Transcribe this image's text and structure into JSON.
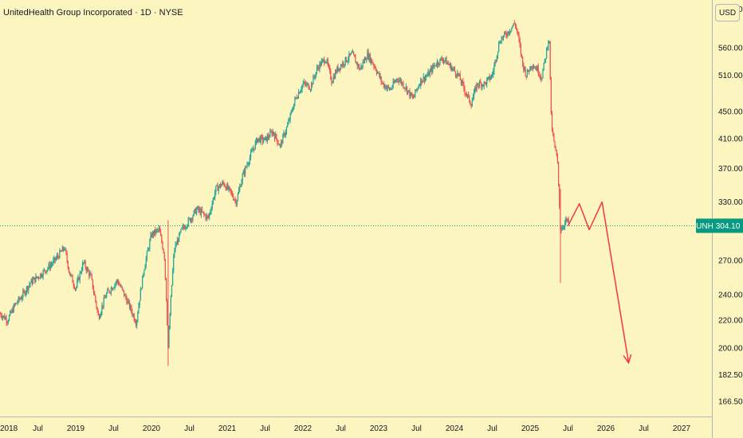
{
  "header": {
    "title": "UnitedHealth Group Incorporated · 1D · NYSE",
    "currency": "USD"
  },
  "colors": {
    "background": "#fdf5bf",
    "up": "#26a69a",
    "down": "#ef5350",
    "projection": "#f23645",
    "last_price_badge": "#089981",
    "axis_line": "#b2b5be",
    "text": "#131722"
  },
  "chart_data": {
    "type": "candlestick",
    "title": "UnitedHealth Group Incorporated · 1D · NYSE",
    "symbol": "UNH",
    "last_price": 304.1,
    "last_price_label": "304.10",
    "y_scale": "log",
    "y_range": [
      158,
      660
    ],
    "y_ticks": [
      "640.00",
      "560.00",
      "510.00",
      "450.00",
      "410.00",
      "370.00",
      "330.00",
      "270.00",
      "240.00",
      "220.00",
      "200.00",
      "182.50",
      "166.50"
    ],
    "x_range": [
      2018.0,
      2027.4
    ],
    "x_ticks": [
      {
        "label": "2018",
        "t": 2018.0
      },
      {
        "label": "Jul",
        "t": 2018.5
      },
      {
        "label": "2019",
        "t": 2019.0
      },
      {
        "label": "Jul",
        "t": 2019.5
      },
      {
        "label": "2020",
        "t": 2020.0
      },
      {
        "label": "Jul",
        "t": 2020.5
      },
      {
        "label": "2021",
        "t": 2021.0
      },
      {
        "label": "Jul",
        "t": 2021.5
      },
      {
        "label": "2022",
        "t": 2022.0
      },
      {
        "label": "Jul",
        "t": 2022.5
      },
      {
        "label": "2023",
        "t": 2023.0
      },
      {
        "label": "Jul",
        "t": 2023.5
      },
      {
        "label": "2024",
        "t": 2024.0
      },
      {
        "label": "Jul",
        "t": 2024.5
      },
      {
        "label": "2025",
        "t": 2025.0
      },
      {
        "label": "Jul",
        "t": 2025.5
      },
      {
        "label": "2026",
        "t": 2026.0
      },
      {
        "label": "Jul",
        "t": 2026.5
      },
      {
        "label": "2027",
        "t": 2027.0
      }
    ],
    "price_path": [
      {
        "t": 2018.0,
        "p": 225
      },
      {
        "t": 2018.1,
        "p": 220
      },
      {
        "t": 2018.2,
        "p": 232
      },
      {
        "t": 2018.28,
        "p": 238
      },
      {
        "t": 2018.4,
        "p": 250
      },
      {
        "t": 2018.55,
        "p": 258
      },
      {
        "t": 2018.7,
        "p": 268
      },
      {
        "t": 2018.85,
        "p": 282
      },
      {
        "t": 2018.92,
        "p": 258
      },
      {
        "t": 2019.0,
        "p": 245
      },
      {
        "t": 2019.1,
        "p": 268
      },
      {
        "t": 2019.2,
        "p": 255
      },
      {
        "t": 2019.3,
        "p": 222
      },
      {
        "t": 2019.4,
        "p": 240
      },
      {
        "t": 2019.55,
        "p": 252
      },
      {
        "t": 2019.7,
        "p": 232
      },
      {
        "t": 2019.8,
        "p": 218
      },
      {
        "t": 2019.9,
        "p": 262
      },
      {
        "t": 2020.0,
        "p": 295
      },
      {
        "t": 2020.1,
        "p": 300
      },
      {
        "t": 2020.17,
        "p": 275
      },
      {
        "t": 2020.22,
        "p": 200
      },
      {
        "t": 2020.3,
        "p": 280
      },
      {
        "t": 2020.4,
        "p": 300
      },
      {
        "t": 2020.5,
        "p": 310
      },
      {
        "t": 2020.6,
        "p": 322
      },
      {
        "t": 2020.75,
        "p": 312
      },
      {
        "t": 2020.85,
        "p": 345
      },
      {
        "t": 2020.95,
        "p": 352
      },
      {
        "t": 2021.05,
        "p": 340
      },
      {
        "t": 2021.12,
        "p": 330
      },
      {
        "t": 2021.2,
        "p": 360
      },
      {
        "t": 2021.3,
        "p": 385
      },
      {
        "t": 2021.4,
        "p": 410
      },
      {
        "t": 2021.5,
        "p": 408
      },
      {
        "t": 2021.6,
        "p": 420
      },
      {
        "t": 2021.7,
        "p": 400
      },
      {
        "t": 2021.8,
        "p": 430
      },
      {
        "t": 2021.9,
        "p": 470
      },
      {
        "t": 2022.0,
        "p": 495
      },
      {
        "t": 2022.1,
        "p": 490
      },
      {
        "t": 2022.2,
        "p": 525
      },
      {
        "t": 2022.3,
        "p": 540
      },
      {
        "t": 2022.38,
        "p": 500
      },
      {
        "t": 2022.45,
        "p": 520
      },
      {
        "t": 2022.55,
        "p": 535
      },
      {
        "t": 2022.65,
        "p": 548
      },
      {
        "t": 2022.75,
        "p": 520
      },
      {
        "t": 2022.85,
        "p": 548
      },
      {
        "t": 2022.95,
        "p": 525
      },
      {
        "t": 2023.05,
        "p": 495
      },
      {
        "t": 2023.15,
        "p": 485
      },
      {
        "t": 2023.25,
        "p": 505
      },
      {
        "t": 2023.35,
        "p": 490
      },
      {
        "t": 2023.45,
        "p": 470
      },
      {
        "t": 2023.55,
        "p": 500
      },
      {
        "t": 2023.65,
        "p": 510
      },
      {
        "t": 2023.75,
        "p": 530
      },
      {
        "t": 2023.85,
        "p": 540
      },
      {
        "t": 2023.95,
        "p": 525
      },
      {
        "t": 2024.05,
        "p": 510
      },
      {
        "t": 2024.15,
        "p": 480
      },
      {
        "t": 2024.22,
        "p": 462
      },
      {
        "t": 2024.3,
        "p": 495
      },
      {
        "t": 2024.4,
        "p": 495
      },
      {
        "t": 2024.5,
        "p": 510
      },
      {
        "t": 2024.6,
        "p": 575
      },
      {
        "t": 2024.7,
        "p": 590
      },
      {
        "t": 2024.8,
        "p": 610
      },
      {
        "t": 2024.85,
        "p": 575
      },
      {
        "t": 2024.9,
        "p": 530
      },
      {
        "t": 2024.95,
        "p": 510
      },
      {
        "t": 2025.02,
        "p": 530
      },
      {
        "t": 2025.1,
        "p": 520
      },
      {
        "t": 2025.15,
        "p": 505
      },
      {
        "t": 2025.2,
        "p": 540
      },
      {
        "t": 2025.25,
        "p": 585
      },
      {
        "t": 2025.28,
        "p": 430
      },
      {
        "t": 2025.32,
        "p": 400
      },
      {
        "t": 2025.36,
        "p": 380
      },
      {
        "t": 2025.4,
        "p": 300
      },
      {
        "t": 2025.44,
        "p": 305
      },
      {
        "t": 2025.48,
        "p": 310
      },
      {
        "t": 2025.52,
        "p": 304
      }
    ],
    "projection": [
      {
        "t": 2025.5,
        "p": 304
      },
      {
        "t": 2025.65,
        "p": 328
      },
      {
        "t": 2025.78,
        "p": 300
      },
      {
        "t": 2025.95,
        "p": 330
      },
      {
        "t": 2026.3,
        "p": 190
      }
    ]
  }
}
